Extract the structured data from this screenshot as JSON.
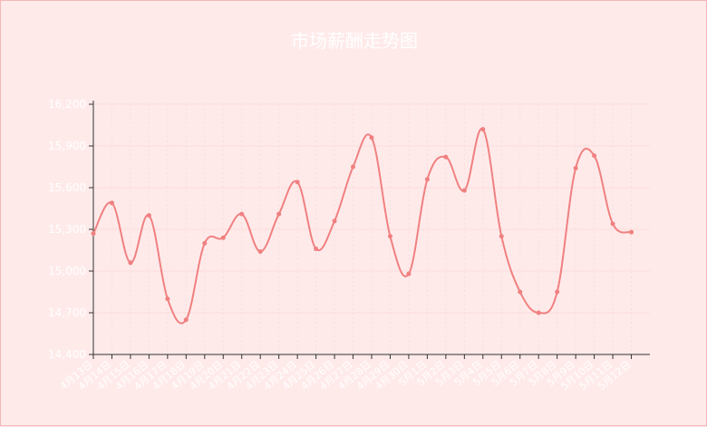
{
  "chart_data": {
    "type": "line",
    "title": "市场薪酬走势图",
    "categories": [
      "4月13日",
      "4月14日",
      "4月15日",
      "4月16日",
      "4月17日",
      "4月18日",
      "4月19日",
      "4月20日",
      "4月21日",
      "4月22日",
      "4月23日",
      "4月24日",
      "4月25日",
      "4月26日",
      "4月27日",
      "4月28日",
      "4月29日",
      "4月30日",
      "5月1日",
      "5月2日",
      "5月3日",
      "5月4日",
      "5月5日",
      "5月6日",
      "5月7日",
      "5月8日",
      "5月9日",
      "5月10日",
      "5月11日",
      "5月12日"
    ],
    "values": [
      15270,
      15490,
      15060,
      15400,
      14800,
      14650,
      15200,
      15240,
      15410,
      15140,
      15410,
      15640,
      15160,
      15360,
      15750,
      15960,
      15250,
      14980,
      15660,
      15820,
      15580,
      16020,
      15250,
      14850,
      14700,
      14850,
      15740,
      15830,
      15340,
      15280
    ],
    "ylim": [
      14400,
      16200
    ],
    "yticks": [
      14400,
      14700,
      15000,
      15300,
      15600,
      15900,
      16200
    ],
    "ytick_labels": [
      "14,400",
      "14,700",
      "15,000",
      "15,300",
      "15,600",
      "15,900",
      "16,200"
    ],
    "grid": true,
    "colors": {
      "line": "#f08080",
      "axis": "#333333",
      "grid": "#fbdcdc",
      "text": "#ffffff"
    }
  }
}
